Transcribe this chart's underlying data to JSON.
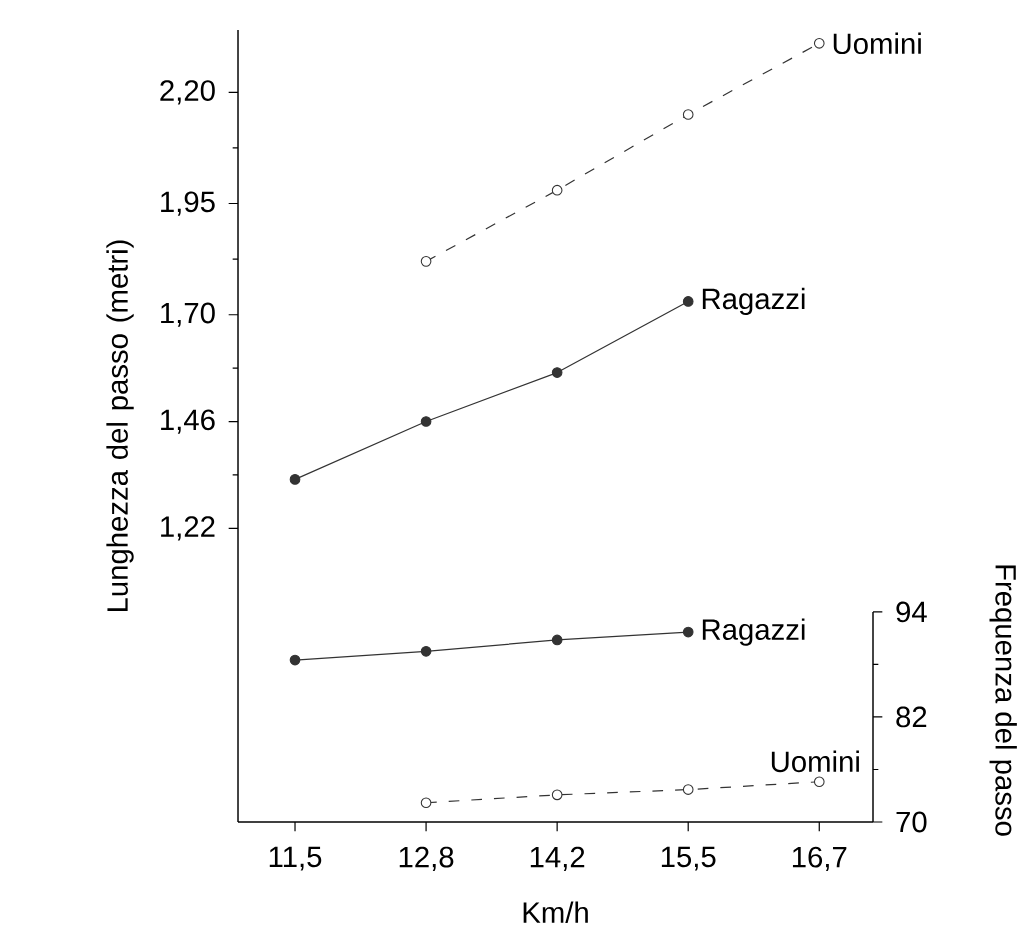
{
  "chart_data": {
    "type": "line",
    "xlabel": "Km/h",
    "ylabel": "Lunghezza del passo (metri)",
    "y2label": "Frequenza del passo",
    "categories": [
      "11,5",
      "12,8",
      "14,2",
      "15,5",
      "16,7"
    ],
    "series": [
      {
        "name": "Uomini",
        "color": "#333333",
        "line_style": "dashed",
        "values": [
          null,
          1.82,
          1.98,
          2.15,
          2.31
        ]
      },
      {
        "name": "Ragazzi",
        "color": "#333333",
        "line_style": "solid",
        "values": [
          1.33,
          1.46,
          1.57,
          1.73,
          null
        ]
      },
      {
        "name": "Ragazzi",
        "color": "#333333",
        "line_style": "solid",
        "axis": "y2",
        "values": [
          88.5,
          89.5,
          90.8,
          91.7,
          null
        ]
      },
      {
        "name": "Uomini",
        "color": "#333333",
        "line_style": "dashed",
        "axis": "y2",
        "values": [
          null,
          72.2,
          73.1,
          73.7,
          74.6
        ]
      }
    ],
    "ylim": [
      0.56,
      2.34
    ],
    "yticks": [
      {
        "value": 1.22,
        "label": "1,22"
      },
      {
        "value": 1.46,
        "label": "1,46"
      },
      {
        "value": 1.7,
        "label": "1,70"
      },
      {
        "value": 1.95,
        "label": "1,95"
      },
      {
        "value": 2.2,
        "label": "2,20"
      }
    ],
    "y2lim": [
      70,
      160.5
    ],
    "y2ticks": [
      70,
      82,
      94
    ],
    "marker": "circle",
    "grid": false,
    "legend": false
  }
}
